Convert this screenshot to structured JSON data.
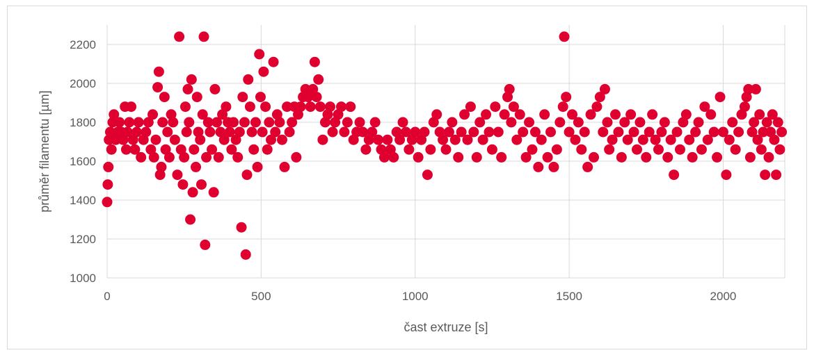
{
  "chart_data": {
    "type": "scatter",
    "title": "",
    "xlabel": "čast extruze [s]",
    "ylabel": "průměr filamentu [µm]",
    "xlim": [
      0,
      2200
    ],
    "ylim": [
      1000,
      2300
    ],
    "xticks": [
      0,
      500,
      1000,
      1500,
      2000
    ],
    "yticks": [
      1000,
      1200,
      1400,
      1600,
      1800,
      2000,
      2200
    ],
    "grid": true,
    "legend": "none",
    "marker_color": "#e0002f",
    "points": [
      [
        0,
        1390
      ],
      [
        2,
        1480
      ],
      [
        4,
        1570
      ],
      [
        6,
        1710
      ],
      [
        10,
        1750
      ],
      [
        14,
        1660
      ],
      [
        18,
        1800
      ],
      [
        22,
        1840
      ],
      [
        28,
        1710
      ],
      [
        34,
        1750
      ],
      [
        40,
        1800
      ],
      [
        46,
        1750
      ],
      [
        52,
        1710
      ],
      [
        58,
        1880
      ],
      [
        62,
        1660
      ],
      [
        66,
        1750
      ],
      [
        72,
        1800
      ],
      [
        78,
        1880
      ],
      [
        84,
        1710
      ],
      [
        90,
        1660
      ],
      [
        96,
        1750
      ],
      [
        102,
        1800
      ],
      [
        110,
        1620
      ],
      [
        118,
        1710
      ],
      [
        126,
        1750
      ],
      [
        134,
        1800
      ],
      [
        142,
        1660
      ],
      [
        148,
        1840
      ],
      [
        152,
        1620
      ],
      [
        158,
        1710
      ],
      [
        164,
        1980
      ],
      [
        168,
        2060
      ],
      [
        172,
        1530
      ],
      [
        176,
        1570
      ],
      [
        180,
        1800
      ],
      [
        186,
        1930
      ],
      [
        190,
        1660
      ],
      [
        196,
        1750
      ],
      [
        202,
        1620
      ],
      [
        208,
        1840
      ],
      [
        214,
        1800
      ],
      [
        220,
        1710
      ],
      [
        228,
        1530
      ],
      [
        234,
        2240
      ],
      [
        240,
        1660
      ],
      [
        246,
        1480
      ],
      [
        250,
        1620
      ],
      [
        254,
        1880
      ],
      [
        258,
        1750
      ],
      [
        262,
        1970
      ],
      [
        266,
        1800
      ],
      [
        270,
        1300
      ],
      [
        274,
        2020
      ],
      [
        278,
        1440
      ],
      [
        282,
        1660
      ],
      [
        288,
        1570
      ],
      [
        292,
        1930
      ],
      [
        296,
        1750
      ],
      [
        302,
        1710
      ],
      [
        306,
        1480
      ],
      [
        310,
        1840
      ],
      [
        314,
        2240
      ],
      [
        318,
        1170
      ],
      [
        322,
        1620
      ],
      [
        328,
        1800
      ],
      [
        334,
        1750
      ],
      [
        340,
        1660
      ],
      [
        346,
        1440
      ],
      [
        350,
        1970
      ],
      [
        356,
        1800
      ],
      [
        362,
        1620
      ],
      [
        368,
        1750
      ],
      [
        374,
        1840
      ],
      [
        380,
        1710
      ],
      [
        386,
        1880
      ],
      [
        392,
        1800
      ],
      [
        398,
        1750
      ],
      [
        404,
        1660
      ],
      [
        410,
        1800
      ],
      [
        418,
        1710
      ],
      [
        424,
        1620
      ],
      [
        430,
        1750
      ],
      [
        436,
        1260
      ],
      [
        440,
        1930
      ],
      [
        446,
        1800
      ],
      [
        450,
        1120
      ],
      [
        454,
        1530
      ],
      [
        458,
        2020
      ],
      [
        464,
        1880
      ],
      [
        470,
        1750
      ],
      [
        476,
        1660
      ],
      [
        482,
        1800
      ],
      [
        488,
        1570
      ],
      [
        494,
        2150
      ],
      [
        498,
        1930
      ],
      [
        504,
        1750
      ],
      [
        508,
        2060
      ],
      [
        514,
        1880
      ],
      [
        520,
        1660
      ],
      [
        526,
        1800
      ],
      [
        532,
        1710
      ],
      [
        540,
        2110
      ],
      [
        546,
        1750
      ],
      [
        552,
        1840
      ],
      [
        560,
        1800
      ],
      [
        568,
        1710
      ],
      [
        576,
        1570
      ],
      [
        584,
        1880
      ],
      [
        592,
        1750
      ],
      [
        600,
        1800
      ],
      [
        608,
        1880
      ],
      [
        614,
        1620
      ],
      [
        620,
        1840
      ],
      [
        628,
        1880
      ],
      [
        636,
        1930
      ],
      [
        644,
        1970
      ],
      [
        652,
        1930
      ],
      [
        660,
        1880
      ],
      [
        668,
        1970
      ],
      [
        674,
        2110
      ],
      [
        680,
        1930
      ],
      [
        686,
        2020
      ],
      [
        692,
        1880
      ],
      [
        700,
        1710
      ],
      [
        708,
        1800
      ],
      [
        716,
        1840
      ],
      [
        724,
        1880
      ],
      [
        732,
        1750
      ],
      [
        740,
        1800
      ],
      [
        750,
        1840
      ],
      [
        760,
        1880
      ],
      [
        770,
        1750
      ],
      [
        780,
        1800
      ],
      [
        790,
        1880
      ],
      [
        800,
        1710
      ],
      [
        810,
        1750
      ],
      [
        820,
        1800
      ],
      [
        830,
        1750
      ],
      [
        840,
        1660
      ],
      [
        850,
        1710
      ],
      [
        860,
        1750
      ],
      [
        870,
        1800
      ],
      [
        880,
        1710
      ],
      [
        890,
        1660
      ],
      [
        900,
        1620
      ],
      [
        910,
        1710
      ],
      [
        920,
        1660
      ],
      [
        930,
        1620
      ],
      [
        940,
        1750
      ],
      [
        950,
        1710
      ],
      [
        960,
        1800
      ],
      [
        970,
        1750
      ],
      [
        980,
        1660
      ],
      [
        990,
        1710
      ],
      [
        1000,
        1750
      ],
      [
        1010,
        1620
      ],
      [
        1020,
        1710
      ],
      [
        1030,
        1750
      ],
      [
        1040,
        1530
      ],
      [
        1050,
        1660
      ],
      [
        1060,
        1800
      ],
      [
        1070,
        1840
      ],
      [
        1080,
        1750
      ],
      [
        1090,
        1710
      ],
      [
        1100,
        1660
      ],
      [
        1110,
        1750
      ],
      [
        1120,
        1800
      ],
      [
        1130,
        1710
      ],
      [
        1140,
        1620
      ],
      [
        1150,
        1750
      ],
      [
        1160,
        1840
      ],
      [
        1170,
        1710
      ],
      [
        1180,
        1880
      ],
      [
        1190,
        1750
      ],
      [
        1200,
        1620
      ],
      [
        1210,
        1800
      ],
      [
        1220,
        1710
      ],
      [
        1230,
        1840
      ],
      [
        1240,
        1750
      ],
      [
        1250,
        1660
      ],
      [
        1260,
        1880
      ],
      [
        1270,
        1750
      ],
      [
        1280,
        1620
      ],
      [
        1290,
        1840
      ],
      [
        1300,
        1930
      ],
      [
        1306,
        1970
      ],
      [
        1312,
        1800
      ],
      [
        1320,
        1880
      ],
      [
        1330,
        1710
      ],
      [
        1340,
        1840
      ],
      [
        1350,
        1750
      ],
      [
        1360,
        1620
      ],
      [
        1370,
        1800
      ],
      [
        1380,
        1660
      ],
      [
        1390,
        1750
      ],
      [
        1400,
        1570
      ],
      [
        1410,
        1710
      ],
      [
        1420,
        1840
      ],
      [
        1430,
        1620
      ],
      [
        1440,
        1750
      ],
      [
        1450,
        1570
      ],
      [
        1460,
        1660
      ],
      [
        1470,
        1800
      ],
      [
        1480,
        1880
      ],
      [
        1484,
        2240
      ],
      [
        1490,
        1930
      ],
      [
        1500,
        1750
      ],
      [
        1510,
        1840
      ],
      [
        1520,
        1710
      ],
      [
        1530,
        1800
      ],
      [
        1540,
        1660
      ],
      [
        1550,
        1750
      ],
      [
        1560,
        1570
      ],
      [
        1570,
        1840
      ],
      [
        1580,
        1620
      ],
      [
        1590,
        1880
      ],
      [
        1600,
        1930
      ],
      [
        1610,
        1750
      ],
      [
        1616,
        1970
      ],
      [
        1624,
        1800
      ],
      [
        1630,
        1660
      ],
      [
        1640,
        1710
      ],
      [
        1650,
        1840
      ],
      [
        1660,
        1750
      ],
      [
        1670,
        1620
      ],
      [
        1680,
        1800
      ],
      [
        1690,
        1710
      ],
      [
        1700,
        1840
      ],
      [
        1710,
        1750
      ],
      [
        1720,
        1660
      ],
      [
        1730,
        1800
      ],
      [
        1740,
        1710
      ],
      [
        1750,
        1620
      ],
      [
        1760,
        1750
      ],
      [
        1770,
        1840
      ],
      [
        1780,
        1710
      ],
      [
        1790,
        1660
      ],
      [
        1800,
        1750
      ],
      [
        1810,
        1800
      ],
      [
        1820,
        1620
      ],
      [
        1830,
        1710
      ],
      [
        1840,
        1530
      ],
      [
        1850,
        1750
      ],
      [
        1860,
        1660
      ],
      [
        1870,
        1800
      ],
      [
        1880,
        1840
      ],
      [
        1890,
        1710
      ],
      [
        1900,
        1620
      ],
      [
        1910,
        1750
      ],
      [
        1920,
        1800
      ],
      [
        1930,
        1660
      ],
      [
        1940,
        1880
      ],
      [
        1950,
        1710
      ],
      [
        1960,
        1840
      ],
      [
        1970,
        1750
      ],
      [
        1980,
        1620
      ],
      [
        1990,
        1930
      ],
      [
        2000,
        1750
      ],
      [
        2010,
        1530
      ],
      [
        2020,
        1710
      ],
      [
        2030,
        1800
      ],
      [
        2040,
        1660
      ],
      [
        2050,
        1750
      ],
      [
        2060,
        1840
      ],
      [
        2070,
        1880
      ],
      [
        2076,
        1930
      ],
      [
        2082,
        1970
      ],
      [
        2088,
        1620
      ],
      [
        2094,
        1750
      ],
      [
        2100,
        1800
      ],
      [
        2106,
        1970
      ],
      [
        2112,
        1710
      ],
      [
        2118,
        1840
      ],
      [
        2124,
        1660
      ],
      [
        2130,
        1750
      ],
      [
        2136,
        1530
      ],
      [
        2142,
        1800
      ],
      [
        2148,
        1620
      ],
      [
        2154,
        1750
      ],
      [
        2160,
        1840
      ],
      [
        2166,
        1710
      ],
      [
        2172,
        1530
      ],
      [
        2178,
        1800
      ],
      [
        2184,
        1660
      ],
      [
        2190,
        1750
      ]
    ]
  }
}
